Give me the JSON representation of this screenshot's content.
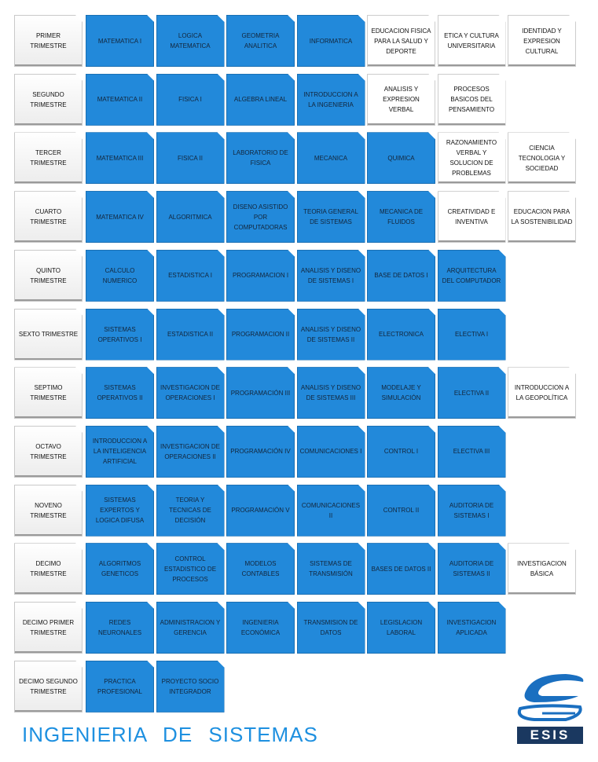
{
  "rows": [
    {
      "label": "PRIMER TRIMESTRE",
      "courses": [
        {
          "name": "MATEMATICA I",
          "color": "#2289da"
        },
        {
          "name": "LOGICA MATEMATICA",
          "color": "#2289da"
        },
        {
          "name": "GEOMETRIA ANALITICA",
          "color": "#2289da"
        },
        {
          "name": "INFORMATICA",
          "color": "#2289da"
        },
        {
          "name": "EDUCACION FISICA PARA LA SALUD Y DEPORTE",
          "color": "#ffffff"
        },
        {
          "name": "ETICA Y CULTURA UNIVERSITARIA",
          "color": "#ffffff"
        },
        {
          "name": "IDENTIDAD Y EXPRESION CULTURAL",
          "color": "#ffffff"
        }
      ]
    },
    {
      "label": "SEGUNDO TRIMESTRE",
      "courses": [
        {
          "name": "MATEMATICA II",
          "color": "#2289da"
        },
        {
          "name": "FISICA I",
          "color": "#2289da"
        },
        {
          "name": "ALGEBRA LINEAL",
          "color": "#2289da"
        },
        {
          "name": "INTRODUCCION A LA INGENIERIA",
          "color": "#2289da"
        },
        {
          "name": "ANALISIS Y EXPRESION VERBAL",
          "color": "#ffffff"
        },
        {
          "name": "PROCESOS BASICOS DEL PENSAMIENTO",
          "color": "#ffffff"
        }
      ]
    },
    {
      "label": "TERCER TRIMESTRE",
      "courses": [
        {
          "name": "MATEMATICA III",
          "color": "#2289da"
        },
        {
          "name": "FISICA II",
          "color": "#2289da"
        },
        {
          "name": "LABORATORIO DE FISICA",
          "color": "#2289da"
        },
        {
          "name": "MECANICA",
          "color": "#2289da"
        },
        {
          "name": "QUIMICA",
          "color": "#2289da"
        },
        {
          "name": "RAZONAMIENTO VERBAL Y SOLUCION DE PROBLEMAS",
          "color": "#ffffff"
        },
        {
          "name": "CIENCIA TECNOLOGIA Y SOCIEDAD",
          "color": "#ffffff"
        }
      ]
    },
    {
      "label": "CUARTO TRIMESTRE",
      "courses": [
        {
          "name": "MATEMATICA IV",
          "color": "#2289da"
        },
        {
          "name": "ALGORITMICA",
          "color": "#2289da"
        },
        {
          "name": "DISENO ASISTIDO POR COMPUTADORAS",
          "color": "#2289da"
        },
        {
          "name": "TEORIA GENERAL DE SISTEMAS",
          "color": "#2289da"
        },
        {
          "name": "MECANICA DE FLUIDOS",
          "color": "#2289da"
        },
        {
          "name": "CREATIVIDAD E INVENTIVA",
          "color": "#ffffff"
        },
        {
          "name": "EDUCACION PARA LA SOSTENIBILIDAD",
          "color": "#ffffff"
        }
      ]
    },
    {
      "label": "QUINTO TRIMESTRE",
      "courses": [
        {
          "name": "CALCULO NUMERICO",
          "color": "#2289da"
        },
        {
          "name": "ESTADISTICA I",
          "color": "#2289da"
        },
        {
          "name": "PROGRAMACION I",
          "color": "#2289da"
        },
        {
          "name": "ANALISIS Y DISENO DE SISTEMAS I",
          "color": "#2289da"
        },
        {
          "name": "BASE DE DATOS I",
          "color": "#2289da"
        },
        {
          "name": "ARQUITECTURA DEL COMPUTADOR",
          "color": "#2289da"
        }
      ]
    },
    {
      "label": "SEXTO TRIMESTRE",
      "courses": [
        {
          "name": "SISTEMAS OPERATIVOS I",
          "color": "#2289da"
        },
        {
          "name": "ESTADISTICA II",
          "color": "#2289da"
        },
        {
          "name": "PROGRAMACION II",
          "color": "#2289da"
        },
        {
          "name": "ANALISIS Y DISENO DE SISTEMAS II",
          "color": "#2289da"
        },
        {
          "name": "ELECTRONICA",
          "color": "#2289da"
        },
        {
          "name": "ELECTIVA I",
          "color": "#2289da"
        }
      ]
    },
    {
      "label": "SEPTIMO TRIMESTRE",
      "courses": [
        {
          "name": "SISTEMAS OPERATIVOS II",
          "color": "#2289da"
        },
        {
          "name": "INVESTIGACION DE OPERACIONES I",
          "color": "#2289da"
        },
        {
          "name": "PROGRAMACIÓN III",
          "color": "#2289da"
        },
        {
          "name": "ANALISIS Y DISENO DE SISTEMAS III",
          "color": "#2289da"
        },
        {
          "name": "MODELAJE Y SIMULACIÓN",
          "color": "#2289da"
        },
        {
          "name": "ELECTIVA II",
          "color": "#2289da"
        },
        {
          "name": "INTRODUCCION A LA GEOPOLÍTICA",
          "color": "#ffffff"
        }
      ]
    },
    {
      "label": "OCTAVO TRIMESTRE",
      "courses": [
        {
          "name": "INTRODUCCION A LA INTELIGENCIA ARTIFICIAL",
          "color": "#2289da"
        },
        {
          "name": "INVESTIGACION DE OPERACIONES II",
          "color": "#2289da"
        },
        {
          "name": "PROGRAMACIÓN IV",
          "color": "#2289da"
        },
        {
          "name": "COMUNICACIONES I",
          "color": "#2289da"
        },
        {
          "name": "CONTROL I",
          "color": "#2289da"
        },
        {
          "name": "ELECTIVA III",
          "color": "#2289da"
        }
      ]
    },
    {
      "label": "NOVENO TRIMESTRE",
      "courses": [
        {
          "name": "SISTEMAS EXPERTOS Y LOGICA DIFUSA",
          "color": "#2289da"
        },
        {
          "name": "TEORIA Y TECNICAS DE DECISIÓN",
          "color": "#2289da"
        },
        {
          "name": "PROGRAMACIÓN V",
          "color": "#2289da"
        },
        {
          "name": "COMUNICACIONES II",
          "color": "#2289da"
        },
        {
          "name": "CONTROL II",
          "color": "#2289da"
        },
        {
          "name": "AUDITORIA DE SISTEMAS I",
          "color": "#2289da"
        }
      ]
    },
    {
      "label": "DECIMO TRIMESTRE",
      "courses": [
        {
          "name": "ALGORITMOS GENETICOS",
          "color": "#2289da"
        },
        {
          "name": "CONTROL ESTADISTICO DE PROCESOS",
          "color": "#2289da"
        },
        {
          "name": "MODELOS CONTABLES",
          "color": "#2289da"
        },
        {
          "name": "SISTEMAS DE TRANSMISIÓN",
          "color": "#2289da"
        },
        {
          "name": "BASES DE DATOS II",
          "color": "#2289da"
        },
        {
          "name": "AUDITORIA DE SISTEMAS II",
          "color": "#2289da"
        },
        {
          "name": "INVESTIGACION BÁSICA",
          "color": "#ffffff"
        }
      ]
    },
    {
      "label": "DECIMO PRIMER TRIMESTRE",
      "courses": [
        {
          "name": "REDES NEURONALES",
          "color": "#2289da"
        },
        {
          "name": "ADMINISTRACION Y GERENCIA",
          "color": "#2289da"
        },
        {
          "name": "INGENIERIA ECONÓMICA",
          "color": "#2289da"
        },
        {
          "name": "TRANSMISION DE DATOS",
          "color": "#2289da"
        },
        {
          "name": "LEGISLACION LABORAL",
          "color": "#2289da"
        },
        {
          "name": "INVESTIGACION APLICADA",
          "color": "#2289da"
        }
      ]
    },
    {
      "label": "DECIMO SEGUNDO TRIMESTRE",
      "courses": [
        {
          "name": "PRACTICA PROFESIONAL",
          "color": "#2289da"
        },
        {
          "name": "PROYECTO SOCIO INTEGRADOR",
          "color": "#2289da"
        }
      ]
    }
  ],
  "title": "INGENIERIA DE SISTEMAS",
  "logo": {
    "text": "ESIS"
  }
}
